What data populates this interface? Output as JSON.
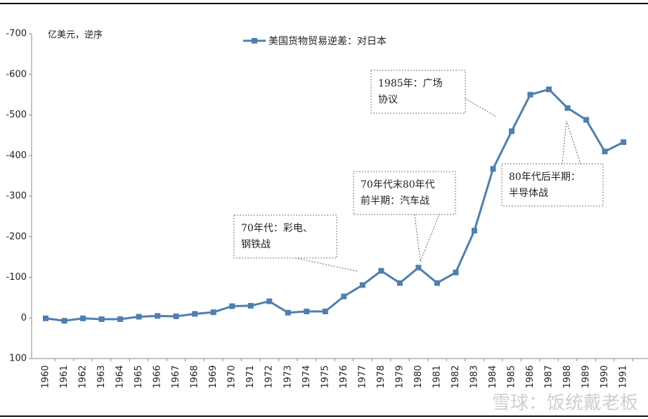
{
  "chart_data": {
    "type": "line",
    "y_label": "亿美元，逆序",
    "categories": [
      "1960",
      "1961",
      "1962",
      "1963",
      "1964",
      "1965",
      "1966",
      "1967",
      "1968",
      "1969",
      "1970",
      "1971",
      "1972",
      "1973",
      "1974",
      "1975",
      "1976",
      "1977",
      "1978",
      "1979",
      "1980",
      "1981",
      "1982",
      "1983",
      "1984",
      "1985",
      "1986",
      "1987",
      "1988",
      "1989",
      "1990",
      "1991"
    ],
    "series": [
      {
        "name": "美国货物贸易逆差：对日本",
        "color": "#4f7fb0",
        "values": [
          1,
          7,
          1,
          3,
          3,
          -3,
          -5,
          -4,
          -10,
          -14,
          -29,
          -30,
          -41,
          -13,
          -16,
          -16,
          -53,
          -81,
          -116,
          -86,
          -124,
          -86,
          -112,
          -215,
          -367,
          -460,
          -550,
          -563,
          -517,
          -488,
          -410,
          -433
        ]
      }
    ],
    "ylim": [
      100,
      -700
    ],
    "yticks": [
      100,
      0,
      -100,
      -200,
      -300,
      -400,
      -500,
      -600,
      -700
    ],
    "legend": "top",
    "annotations": [
      {
        "lines": [
          "70年代：彩电、",
          "钢铁战"
        ]
      },
      {
        "lines": [
          "70年代末80年代",
          "前半期：汽车战"
        ]
      },
      {
        "lines": [
          "1985年：广场",
          "协议"
        ]
      },
      {
        "lines": [
          "80年代后半期：",
          "半导体战"
        ]
      }
    ],
    "watermark": "雪球：饭统戴老板"
  }
}
